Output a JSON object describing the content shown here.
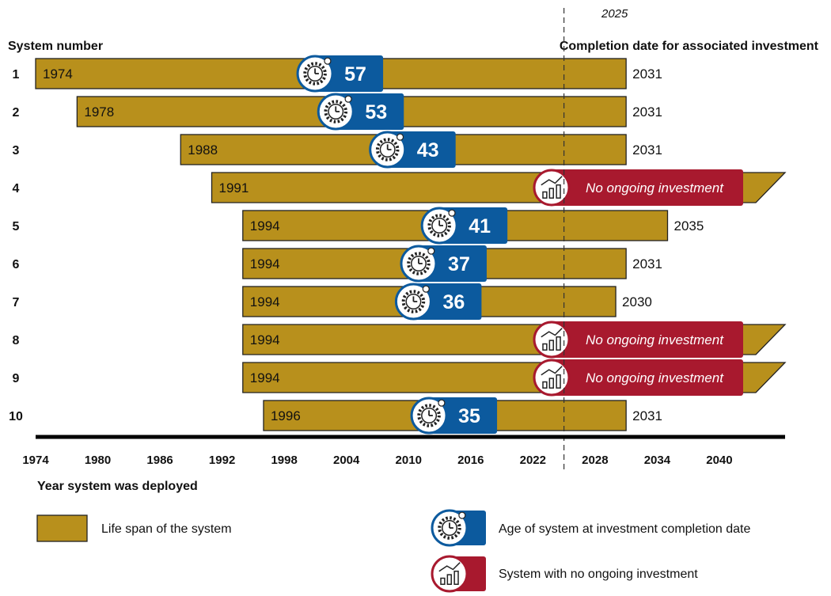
{
  "chart_data": {
    "type": "bar",
    "orientation": "horizontal",
    "current_year_marker": "2025",
    "ylabel": "System number",
    "right_label": "Completion date for associated investment",
    "xlabel": "Year system was deployed",
    "xlim": [
      1974,
      2042
    ],
    "x_ticks": [
      "1974",
      "1980",
      "1986",
      "1992",
      "1998",
      "2004",
      "2010",
      "2016",
      "2022",
      "2028",
      "2034",
      "2040"
    ],
    "no_investment_text": "No ongoing investment",
    "colors": {
      "lifespan": "#b8901c",
      "age_badge": "#0c5a9e",
      "no_investment": "#a8192e"
    },
    "systems": [
      {
        "number": "1",
        "start": 1974,
        "start_label": "1974",
        "end": 2031,
        "end_label": "2031",
        "age": "57",
        "no_investment": false
      },
      {
        "number": "2",
        "start": 1978,
        "start_label": "1978",
        "end": 2031,
        "end_label": "2031",
        "age": "53",
        "no_investment": false
      },
      {
        "number": "3",
        "start": 1988,
        "start_label": "1988",
        "end": 2031,
        "end_label": "2031",
        "age": "43",
        "no_investment": false
      },
      {
        "number": "4",
        "start": 1991,
        "start_label": "1991",
        "end": null,
        "end_label": "",
        "age": "",
        "no_investment": true
      },
      {
        "number": "5",
        "start": 1994,
        "start_label": "1994",
        "end": 2035,
        "end_label": "2035",
        "age": "41",
        "no_investment": false
      },
      {
        "number": "6",
        "start": 1994,
        "start_label": "1994",
        "end": 2031,
        "end_label": "2031",
        "age": "37",
        "no_investment": false
      },
      {
        "number": "7",
        "start": 1994,
        "start_label": "1994",
        "end": 2030,
        "end_label": "2030",
        "age": "36",
        "no_investment": false
      },
      {
        "number": "8",
        "start": 1994,
        "start_label": "1994",
        "end": null,
        "end_label": "",
        "age": "",
        "no_investment": true
      },
      {
        "number": "9",
        "start": 1994,
        "start_label": "1994",
        "end": null,
        "end_label": "",
        "age": "",
        "no_investment": true
      },
      {
        "number": "10",
        "start": 1996,
        "start_label": "1996",
        "end": 2031,
        "end_label": "2031",
        "age": "35",
        "no_investment": false
      }
    ],
    "legend": [
      {
        "key": "lifespan",
        "label": "Life span of the system"
      },
      {
        "key": "age",
        "label": "Age of system at investment completion date"
      },
      {
        "key": "no_investment",
        "label": "System with no ongoing investment"
      }
    ]
  }
}
